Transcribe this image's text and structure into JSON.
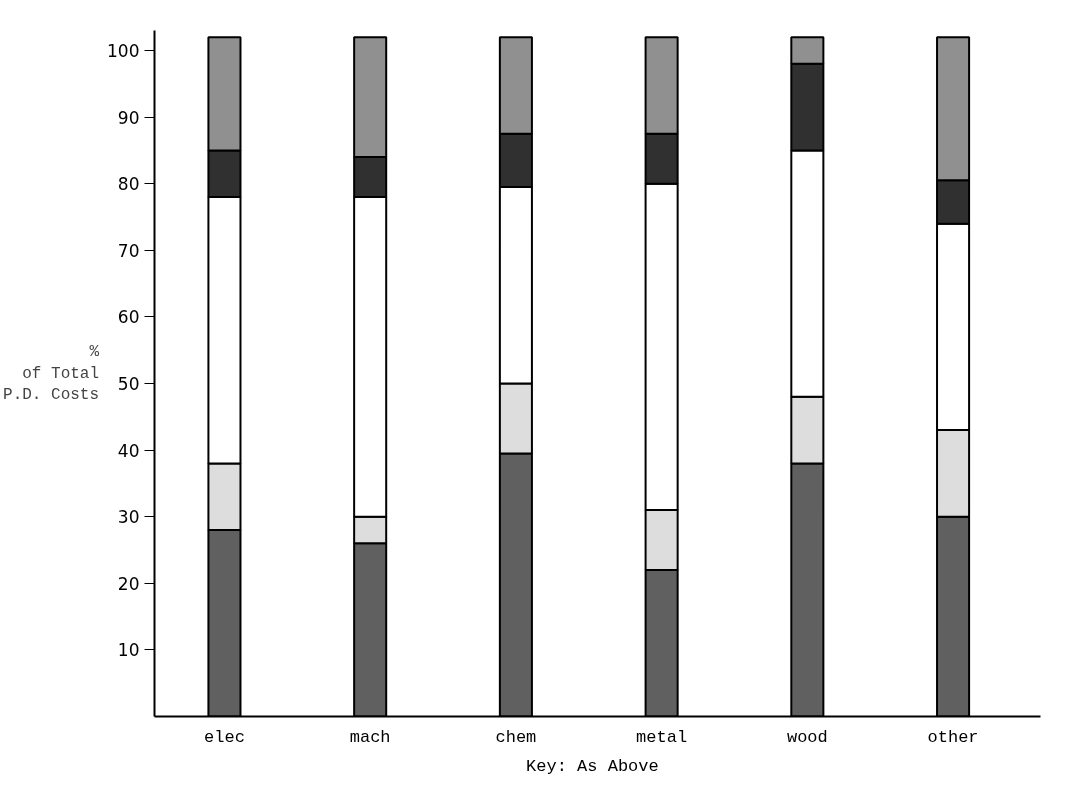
{
  "chart_data": {
    "type": "bar",
    "stacked": true,
    "ylabel": "%\nof Total\nP.D. Costs",
    "categories": [
      "elec",
      "mach",
      "chem",
      "metal",
      "wood",
      "other"
    ],
    "series": [
      {
        "color": "#606060",
        "values": [
          28,
          26,
          39.5,
          22,
          38,
          30
        ]
      },
      {
        "color": "#dddddd",
        "values": [
          10,
          4,
          10.5,
          9,
          10,
          13
        ]
      },
      {
        "color": "#ffffff",
        "values": [
          40,
          48,
          29.5,
          49,
          37,
          31
        ]
      },
      {
        "color": "#303030",
        "values": [
          7,
          6,
          8,
          7.5,
          13,
          6.5
        ]
      },
      {
        "color": "#909090",
        "values": [
          17,
          18,
          14.5,
          14.5,
          4,
          21.5
        ]
      }
    ],
    "ylim": [
      0,
      103
    ],
    "yticks": [
      10,
      20,
      30,
      40,
      50,
      60,
      70,
      80,
      90,
      100
    ],
    "grid": false,
    "annotations": [
      "Key:  As Above"
    ]
  }
}
